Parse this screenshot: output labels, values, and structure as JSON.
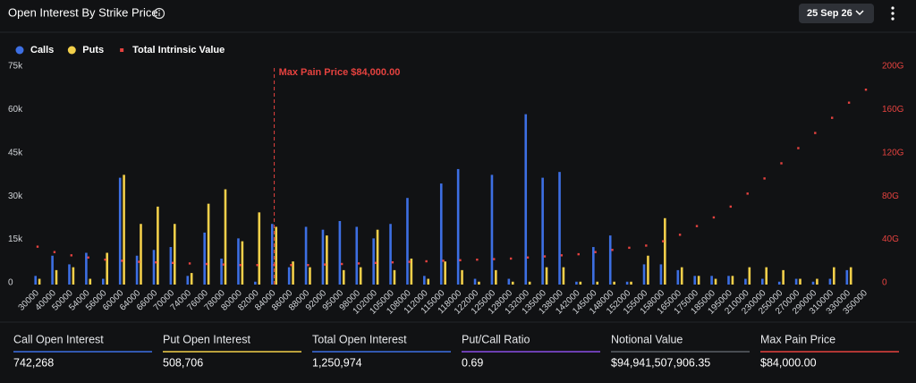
{
  "header": {
    "title": "Open Interest By Strike Price",
    "date": "25 Sep 26"
  },
  "chart_data": {
    "type": "bar",
    "categories": [
      "30000",
      "40000",
      "50000",
      "54000",
      "56000",
      "60000",
      "64000",
      "66000",
      "70000",
      "74000",
      "76000",
      "78000",
      "80000",
      "82000",
      "84000",
      "86000",
      "88000",
      "92000",
      "95000",
      "98000",
      "102000",
      "105000",
      "108000",
      "112000",
      "115000",
      "118000",
      "122000",
      "125000",
      "128000",
      "132000",
      "135000",
      "138000",
      "142000",
      "145000",
      "148000",
      "152000",
      "155000",
      "158000",
      "165000",
      "175000",
      "185000",
      "195000",
      "210000",
      "230000",
      "250000",
      "270000",
      "290000",
      "310000",
      "330000",
      "350000"
    ],
    "series": [
      {
        "name": "Calls",
        "color": "#3d6fe3",
        "axis": "y",
        "values": [
          3000,
          10000,
          7000,
          11000,
          2000,
          37000,
          10000,
          12000,
          13000,
          3000,
          18000,
          9000,
          16000,
          1000,
          21000,
          6000,
          20000,
          19000,
          22000,
          20000,
          16000,
          21000,
          30000,
          3000,
          35000,
          40000,
          2000,
          38000,
          2000,
          59000,
          37000,
          39000,
          1000,
          13000,
          17000,
          1000,
          7000,
          7000,
          5000,
          3000,
          3000,
          3000,
          2000,
          2000,
          1000,
          2000,
          1000,
          2000,
          5000,
          0
        ]
      },
      {
        "name": "Puts",
        "color": "#f2cf4a",
        "axis": "y",
        "values": [
          2000,
          5000,
          6000,
          2000,
          11000,
          38000,
          21000,
          27000,
          21000,
          4000,
          28000,
          33000,
          15000,
          25000,
          20000,
          8000,
          6000,
          17000,
          5000,
          6000,
          19000,
          5000,
          9000,
          2000,
          8000,
          5000,
          1000,
          5000,
          1000,
          1000,
          6000,
          6000,
          1000,
          1000,
          1000,
          1000,
          10000,
          23000,
          6000,
          3000,
          2000,
          3000,
          6000,
          6000,
          5000,
          2000,
          2000,
          6000,
          6000,
          0
        ]
      },
      {
        "name": "Total Intrinsic Value",
        "color": "#e5423f",
        "axis": "y2",
        "values": [
          35,
          30,
          27,
          25,
          23,
          22,
          21,
          20.5,
          20,
          19.5,
          19,
          18.5,
          18,
          18,
          18,
          18,
          18,
          18.5,
          19,
          19.5,
          20,
          20.5,
          21,
          21.5,
          22,
          22.5,
          23,
          23.5,
          24,
          25,
          26,
          27,
          28,
          30,
          32,
          34,
          36,
          40,
          46,
          54,
          62,
          72,
          84,
          98,
          112,
          126,
          140,
          154,
          168,
          180
        ]
      }
    ],
    "ylim": [
      0,
      75000
    ],
    "yticks": [
      0,
      {
        "value": 15000,
        "label": "15k"
      },
      {
        "value": 30000,
        "label": "30k"
      },
      {
        "value": 45000,
        "label": "45k"
      },
      {
        "value": 60000,
        "label": "60k"
      },
      {
        "value": 75000,
        "label": "75k"
      }
    ],
    "y2lim": [
      0,
      200
    ],
    "y2ticks": [
      0,
      {
        "value": 40,
        "label": "40G"
      },
      {
        "value": 80,
        "label": "80G"
      },
      {
        "value": 120,
        "label": "120G"
      },
      {
        "value": 160,
        "label": "160G"
      },
      {
        "value": 200,
        "label": "200G"
      }
    ],
    "annotation": {
      "text": "Max Pain Price $84,000.00",
      "x": "84000",
      "color": "#e5423f"
    },
    "legend": "top-left"
  },
  "stats": [
    {
      "label": "Call Open Interest",
      "value": "742,268",
      "color": "#3d6fe3"
    },
    {
      "label": "Put Open Interest",
      "value": "508,706",
      "color": "#f2cf4a"
    },
    {
      "label": "Total Open Interest",
      "value": "1,250,974",
      "color": "#3d6fe3"
    },
    {
      "label": "Put/Call Ratio",
      "value": "0.69",
      "color": "#8a4de6"
    },
    {
      "label": "Notional Value",
      "value": "$94,941,507,906.35",
      "color": "#5b5f66"
    },
    {
      "label": "Max Pain Price",
      "value": "$84,000.00",
      "color": "#e5423f"
    }
  ]
}
